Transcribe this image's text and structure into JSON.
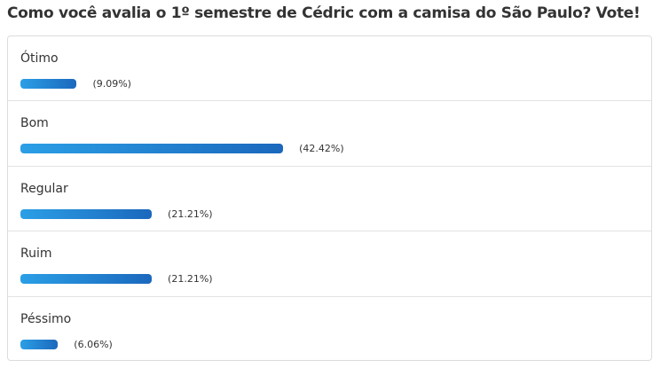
{
  "chart_data": {
    "type": "bar",
    "orientation": "horizontal",
    "title": "Como você avalia o 1º semestre de Cédric com a camisa do São Paulo? Vote!",
    "categories": [
      "Ótimo",
      "Bom",
      "Regular",
      "Ruim",
      "Péssimo"
    ],
    "values": [
      9.09,
      42.42,
      21.21,
      21.21,
      6.06
    ],
    "value_labels": [
      "(9.09%)",
      "(42.42%)",
      "(21.21%)",
      "(21.21%)",
      "(6.06%)"
    ],
    "color": "#1f7fd0"
  }
}
